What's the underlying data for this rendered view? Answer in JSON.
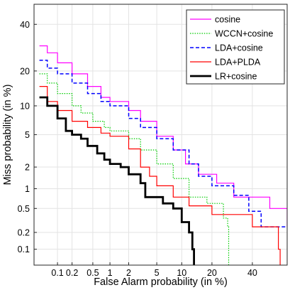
{
  "chart_data": {
    "type": "line",
    "title": "",
    "xlabel": "False Alarm probability (in %)",
    "ylabel": "Miss probability (in %)",
    "x_scale": "probit",
    "y_scale": "probit",
    "xlim": [
      0.03,
      60
    ],
    "ylim": [
      0.05,
      50
    ],
    "xticks": [
      0.1,
      0.2,
      0.5,
      1,
      2,
      5,
      10,
      20,
      40
    ],
    "xtick_labels": [
      "0.1",
      "0.2",
      "0.5",
      "1",
      "2",
      "5",
      "10",
      "20",
      "40"
    ],
    "yticks": [
      0.1,
      0.2,
      0.5,
      1,
      2,
      5,
      10,
      20,
      40
    ],
    "ytick_labels": [
      "0.1",
      "0.2",
      "0.5",
      "1",
      "2",
      "5",
      "10",
      "20",
      "40"
    ],
    "grid": true,
    "legend_position": "top-right",
    "series": [
      {
        "name": "cosine",
        "color": "#ff00ff",
        "dash": "solid",
        "points": [
          [
            0.04,
            30
          ],
          [
            0.06,
            27
          ],
          [
            0.1,
            23
          ],
          [
            0.2,
            19
          ],
          [
            0.4,
            15
          ],
          [
            0.7,
            12
          ],
          [
            1,
            11
          ],
          [
            2,
            9
          ],
          [
            3,
            7
          ],
          [
            5,
            4.8
          ],
          [
            8,
            3.3
          ],
          [
            11,
            2.2
          ],
          [
            15,
            1.6
          ],
          [
            22,
            1.2
          ],
          [
            30,
            0.75
          ],
          [
            50,
            0.5
          ],
          [
            60,
            0.25
          ]
        ]
      },
      {
        "name": "WCCN+cosine",
        "color": "#00cc00",
        "dash": "dotted",
        "points": [
          [
            0.04,
            19
          ],
          [
            0.06,
            16
          ],
          [
            0.1,
            13
          ],
          [
            0.2,
            10
          ],
          [
            0.3,
            8.5
          ],
          [
            0.5,
            7
          ],
          [
            0.8,
            6
          ],
          [
            1,
            5.5
          ],
          [
            2,
            4.5
          ],
          [
            3,
            3.3
          ],
          [
            5,
            2.2
          ],
          [
            8,
            1.4
          ],
          [
            12,
            0.75
          ],
          [
            18,
            0.6
          ],
          [
            25,
            0.35
          ],
          [
            27,
            0.25
          ],
          [
            27.5,
            0.03
          ]
        ]
      },
      {
        "name": "LDA+cosine",
        "color": "#0000ff",
        "dash": "dashed",
        "points": [
          [
            0.04,
            24
          ],
          [
            0.06,
            21
          ],
          [
            0.1,
            19
          ],
          [
            0.2,
            16
          ],
          [
            0.4,
            13
          ],
          [
            0.7,
            11
          ],
          [
            1,
            10
          ],
          [
            2,
            7.5
          ],
          [
            3,
            6
          ],
          [
            5,
            4.5
          ],
          [
            8,
            3.3
          ],
          [
            12,
            2.2
          ],
          [
            15,
            1.5
          ],
          [
            20,
            1.1
          ],
          [
            30,
            0.8
          ],
          [
            38,
            0.45
          ],
          [
            45,
            0.25
          ],
          [
            60,
            0.25
          ]
        ]
      },
      {
        "name": "LDA+PLDA",
        "color": "#ff0000",
        "dash": "solid",
        "points": [
          [
            0.04,
            15
          ],
          [
            0.06,
            11
          ],
          [
            0.1,
            9
          ],
          [
            0.2,
            7
          ],
          [
            0.4,
            6
          ],
          [
            0.7,
            5.2
          ],
          [
            1,
            4.8
          ],
          [
            2,
            3.4
          ],
          [
            3,
            2
          ],
          [
            4,
            1.5
          ],
          [
            5,
            1.1
          ],
          [
            8,
            0.75
          ],
          [
            12,
            0.55
          ],
          [
            20,
            0.4
          ],
          [
            40,
            0.25
          ],
          [
            55,
            0.1
          ],
          [
            56,
            0.03
          ]
        ]
      },
      {
        "name": "LR+cosine",
        "color": "#000000",
        "dash": "solid",
        "points": [
          [
            0.04,
            12
          ],
          [
            0.06,
            10
          ],
          [
            0.1,
            7.5
          ],
          [
            0.15,
            5.5
          ],
          [
            0.2,
            5
          ],
          [
            0.3,
            4.5
          ],
          [
            0.4,
            3.7
          ],
          [
            0.6,
            3
          ],
          [
            0.8,
            2.5
          ],
          [
            1,
            2.2
          ],
          [
            1.5,
            2
          ],
          [
            2,
            1.6
          ],
          [
            3,
            1.2
          ],
          [
            3.5,
            0.75
          ],
          [
            5,
            0.75
          ],
          [
            6,
            0.6
          ],
          [
            8,
            0.5
          ],
          [
            10,
            0.3
          ],
          [
            12,
            0.2
          ],
          [
            13,
            0.1
          ],
          [
            13.5,
            0.03
          ]
        ]
      }
    ]
  }
}
